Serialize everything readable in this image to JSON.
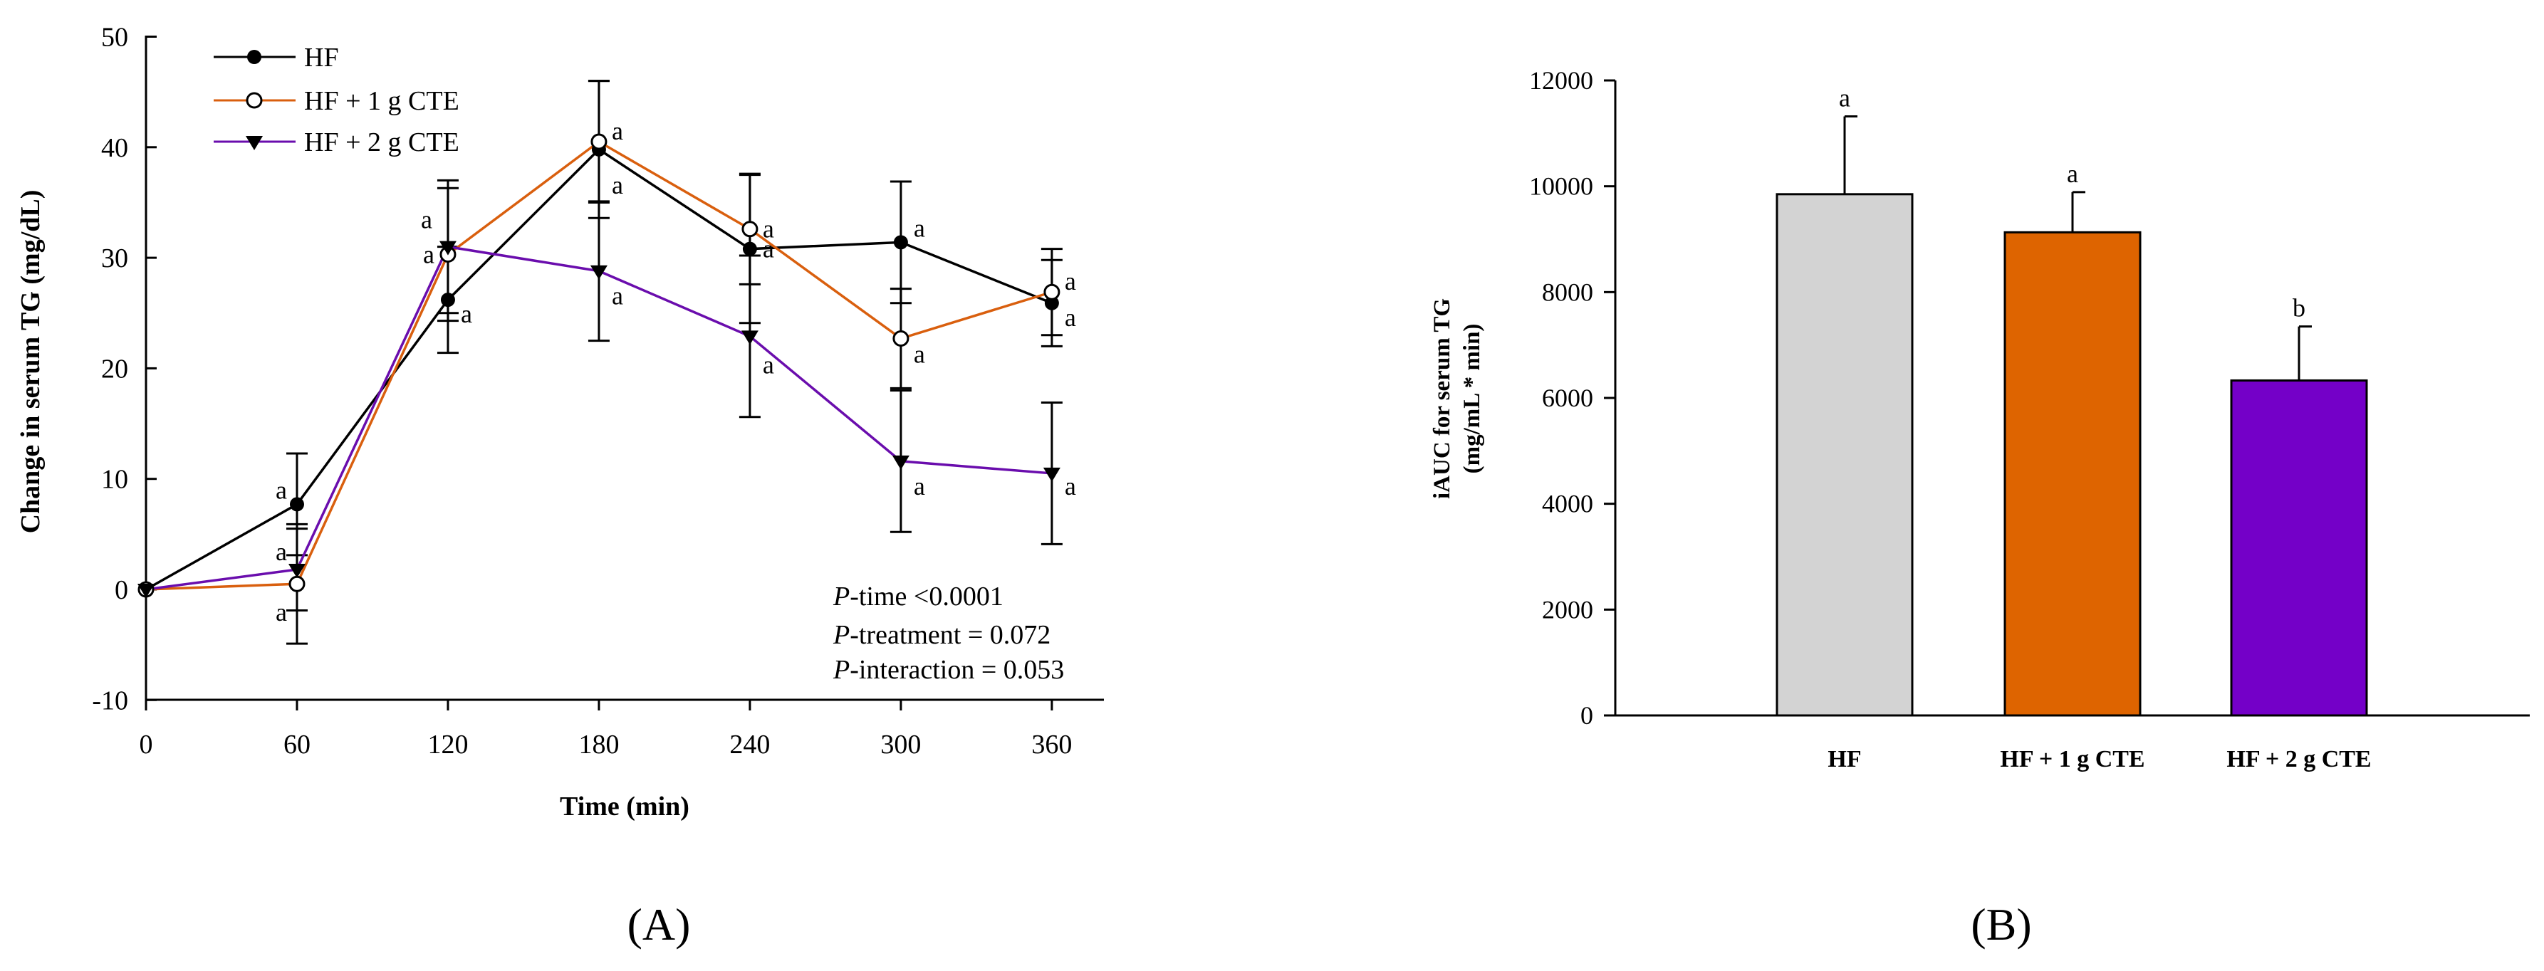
{
  "chart_data": [
    {
      "type": "line",
      "panel_label": "(A)",
      "xlabel": "Time (min)",
      "ylabel": "Change in serum TG (mg/dL)",
      "x": [
        0,
        60,
        120,
        180,
        240,
        300,
        360
      ],
      "x_ticks": [
        "0",
        "60",
        "120",
        "180",
        "240",
        "300",
        "360"
      ],
      "xlim": [
        0,
        380
      ],
      "ylim": [
        -10,
        50
      ],
      "y_ticks": [
        "-10",
        "0",
        "10",
        "20",
        "30",
        "40",
        "50"
      ],
      "series": [
        {
          "name": "HF",
          "legend_label": "HF",
          "color": "#000000",
          "marker": "filled-circle",
          "values": [
            0,
            7.7,
            26.2,
            39.8,
            30.8,
            31.4,
            25.9
          ],
          "errors": [
            0,
            4.6,
            4.8,
            6.2,
            6.7,
            5.5,
            3.9
          ],
          "sig_letters": [
            "",
            "a",
            "a",
            "a",
            "a",
            "a",
            "a"
          ]
        },
        {
          "name": "HF + 1 g CTE",
          "legend_label": "HF + 1 g CTE",
          "color": "#d95f0e",
          "marker": "open-circle",
          "values": [
            0,
            0.5,
            30.3,
            40.5,
            32.6,
            22.7,
            26.9
          ],
          "errors": [
            0,
            5.4,
            6.0,
            5.5,
            5.0,
            4.5,
            3.9
          ],
          "sig_letters": [
            "",
            "a",
            "a",
            "a",
            "a",
            "a",
            "a"
          ]
        },
        {
          "name": "HF + 2 g CTE",
          "legend_label": "HF + 2 g CTE",
          "color": "#6a0dad",
          "marker": "filled-triangle",
          "values": [
            0,
            1.8,
            31.0,
            28.8,
            22.9,
            11.6,
            10.5
          ],
          "errors": [
            0,
            3.7,
            6.0,
            6.3,
            7.3,
            6.4,
            6.4
          ],
          "sig_letters": [
            "",
            "a",
            "a",
            "a",
            "a",
            "a",
            "a"
          ]
        }
      ],
      "annotation": {
        "time_prefix": "P",
        "time_rest": "-time <0.0001",
        "treatment_prefix": "P",
        "treatment_rest": "-treatment = 0.072",
        "interaction_prefix": "P",
        "interaction_rest": "-interaction = 0.053"
      }
    },
    {
      "type": "bar",
      "panel_label": "(B)",
      "ylabel_line1": "iAUC for serum TG",
      "ylabel_line2": "(mg/mL * min)",
      "categories": [
        "HF",
        "HF + 1 g CTE",
        "HF + 2 g CTE"
      ],
      "values": [
        9850,
        9130,
        6330
      ],
      "errors": [
        1470,
        760,
        1020
      ],
      "colors": [
        "#d3d3d3",
        "#de6400",
        "#7400c8"
      ],
      "sig_letters": [
        "a",
        "a",
        "b"
      ],
      "ylim": [
        0,
        12000
      ],
      "y_ticks": [
        "0",
        "2000",
        "4000",
        "6000",
        "8000",
        "10000",
        "12000"
      ]
    }
  ]
}
